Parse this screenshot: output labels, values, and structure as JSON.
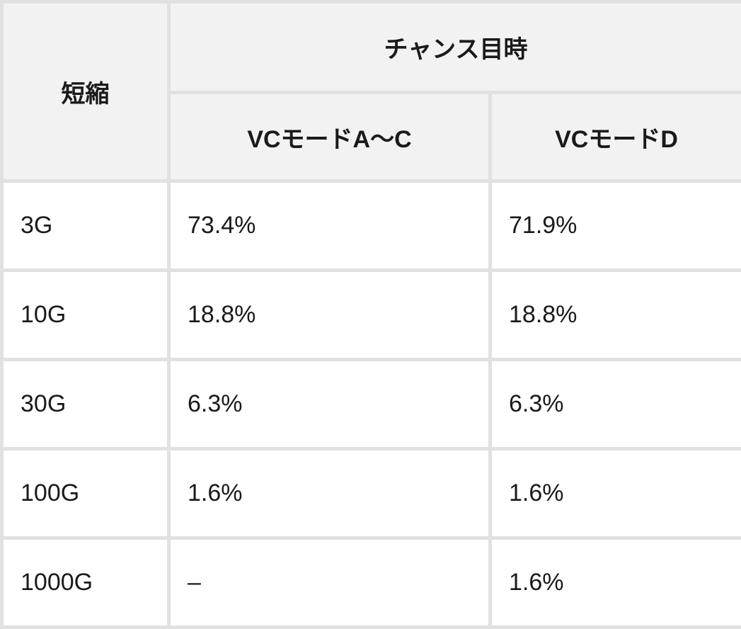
{
  "table": {
    "header": {
      "row_label": "短縮",
      "group": "チャンス目時",
      "columns": [
        "VCモードA〜C",
        "VCモードD"
      ]
    },
    "rows": [
      [
        "3G",
        "73.4%",
        "71.9%"
      ],
      [
        "10G",
        "18.8%",
        "18.8%"
      ],
      [
        "30G",
        "6.3%",
        "6.3%"
      ],
      [
        "100G",
        "1.6%",
        "1.6%"
      ],
      [
        "1000G",
        "–",
        "1.6%"
      ]
    ]
  }
}
